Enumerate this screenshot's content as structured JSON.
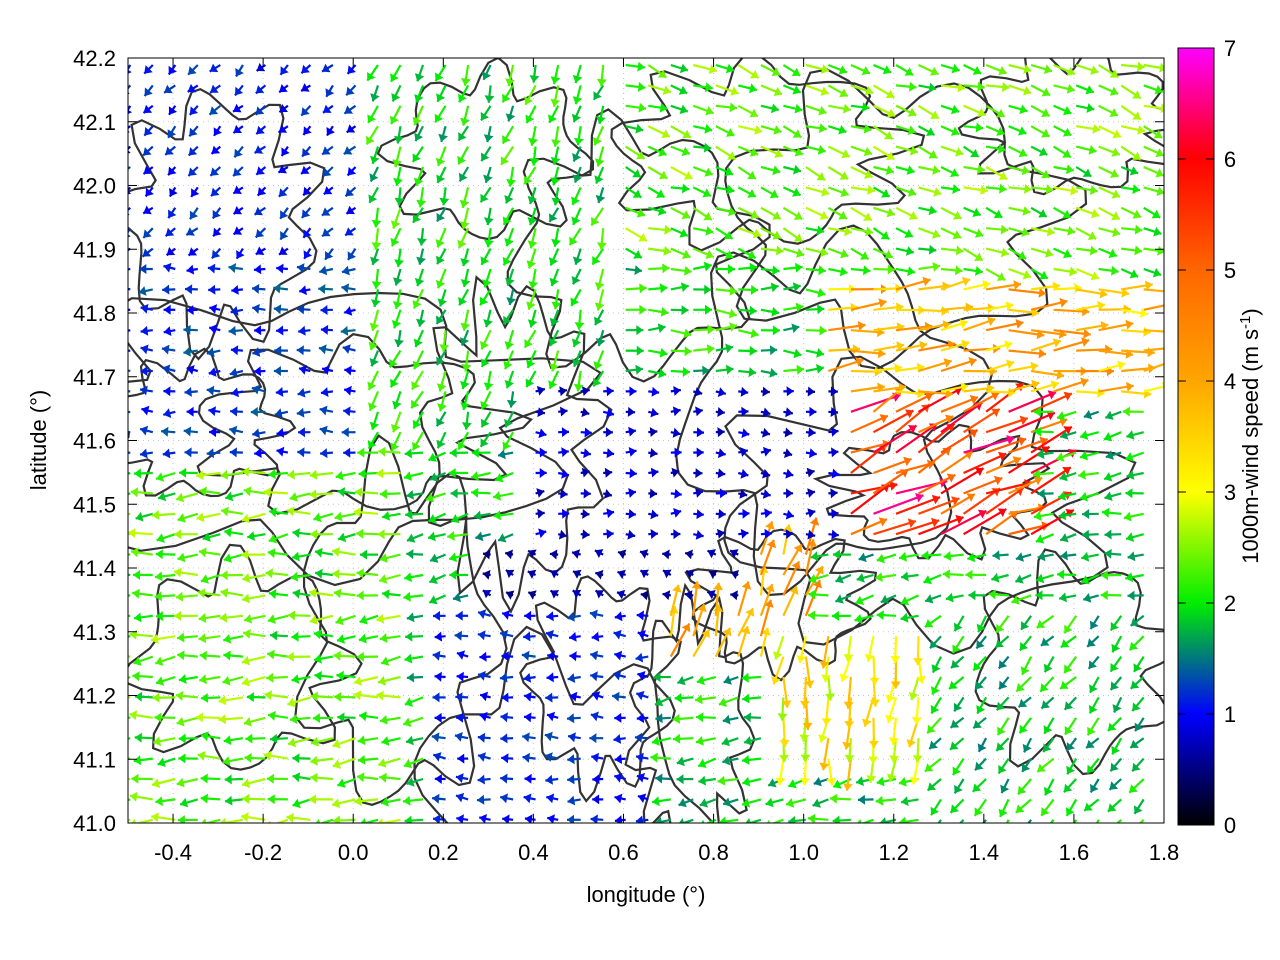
{
  "chart_data": {
    "type": "vector-field",
    "xlabel": "longitude (°)",
    "ylabel": "latitude (°)",
    "colorbar_label": "1000m-wind speed (m s-1)",
    "colorbar_label_parts": {
      "main": "1000m-wind speed (m s",
      "sup": "-1",
      "close": ")"
    },
    "xlim": [
      -0.5,
      1.8
    ],
    "ylim": [
      41.0,
      42.2
    ],
    "clim": [
      0,
      7
    ],
    "xticks": [
      -0.4,
      -0.2,
      0.0,
      0.2,
      0.4,
      0.6,
      0.8,
      1.0,
      1.2,
      1.4,
      1.6,
      1.8
    ],
    "xtick_labels": [
      "-0.4",
      "-0.2",
      "0.0",
      "0.2",
      "0.4",
      "0.6",
      "0.8",
      "1.0",
      "1.2",
      "1.4",
      "1.6",
      "1.8"
    ],
    "yticks": [
      41.0,
      41.1,
      41.2,
      41.3,
      41.4,
      41.5,
      41.6,
      41.7,
      41.8,
      41.9,
      42.0,
      42.1,
      42.2
    ],
    "ytick_labels": [
      "41.0",
      "41.1",
      "41.2",
      "41.3",
      "41.4",
      "41.5",
      "41.6",
      "41.7",
      "41.8",
      "41.9",
      "42.0",
      "42.1",
      "42.2"
    ],
    "cticks": [
      0,
      1,
      2,
      3,
      4,
      5,
      6,
      7
    ],
    "ctick_labels": [
      "0",
      "1",
      "2",
      "3",
      "4",
      "5",
      "6",
      "7"
    ],
    "colormap": [
      {
        "v": 0.0,
        "c": "#000000"
      },
      {
        "v": 1.0,
        "c": "#0000ff"
      },
      {
        "v": 2.0,
        "c": "#00ee00"
      },
      {
        "v": 3.0,
        "c": "#ffff00"
      },
      {
        "v": 4.0,
        "c": "#ffa500"
      },
      {
        "v": 5.0,
        "c": "#ff6600"
      },
      {
        "v": 6.0,
        "c": "#ff0000"
      },
      {
        "v": 7.0,
        "c": "#ff00ff"
      }
    ],
    "grid": true,
    "grid_color": "#c8c8c8",
    "contour_color": "#333333",
    "wind_regimes": [
      {
        "lon": [
          -0.5,
          0.15
        ],
        "lat": [
          41.0,
          41.72
        ],
        "dir_deg": 175,
        "speed": 2.3
      },
      {
        "lon": [
          -0.5,
          0.05
        ],
        "lat": [
          41.55,
          41.9
        ],
        "dir_deg": 180,
        "speed": 1.2
      },
      {
        "lon": [
          -0.5,
          0.05
        ],
        "lat": [
          41.9,
          42.2
        ],
        "dir_deg": 135,
        "speed": 1.1
      },
      {
        "lon": [
          0.05,
          0.6
        ],
        "lat": [
          41.6,
          42.2
        ],
        "dir_deg": 110,
        "speed": 2.0
      },
      {
        "lon": [
          0.6,
          1.8
        ],
        "lat": [
          41.85,
          42.2
        ],
        "dir_deg": 20,
        "speed": 2.3
      },
      {
        "lon": [
          0.6,
          1.4
        ],
        "lat": [
          41.7,
          41.9
        ],
        "dir_deg": 0,
        "speed": 2.0
      },
      {
        "lon": [
          1.05,
          1.8
        ],
        "lat": [
          41.65,
          41.85
        ],
        "dir_deg": 355,
        "speed": 3.8
      },
      {
        "lon": [
          1.1,
          1.55
        ],
        "lat": [
          41.45,
          41.65
        ],
        "dir_deg": 335,
        "speed": 5.5
      },
      {
        "lon": [
          0.4,
          1.1
        ],
        "lat": [
          41.45,
          41.7
        ],
        "dir_deg": 0,
        "speed": 0.8
      },
      {
        "lon": [
          0.7,
          1.05
        ],
        "lat": [
          41.25,
          41.45
        ],
        "dir_deg": 290,
        "speed": 3.9
      },
      {
        "lon": [
          0.95,
          1.3
        ],
        "lat": [
          41.1,
          41.3
        ],
        "dir_deg": 95,
        "speed": 3.2
      },
      {
        "lon": [
          1.3,
          1.8
        ],
        "lat": [
          41.0,
          41.35
        ],
        "dir_deg": 130,
        "speed": 1.9
      },
      {
        "lon": [
          0.2,
          0.7
        ],
        "lat": [
          41.0,
          41.35
        ],
        "dir_deg": 185,
        "speed": 1.1
      },
      {
        "lon": [
          0.3,
          0.9
        ],
        "lat": [
          41.35,
          41.45
        ],
        "dir_deg": 200,
        "speed": 0.6
      }
    ]
  }
}
